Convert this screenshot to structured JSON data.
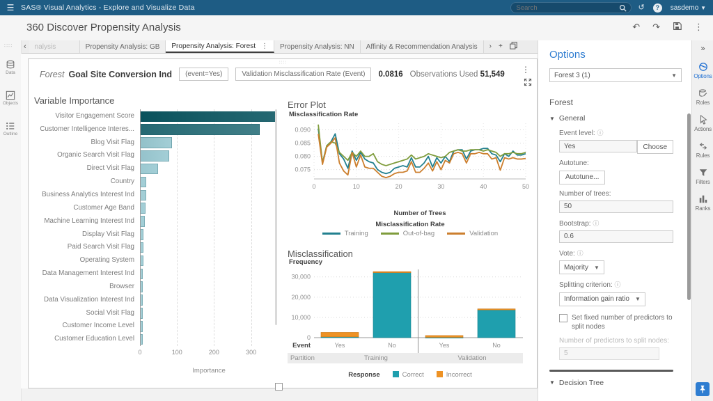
{
  "theme": {
    "appbar_bg": "#1e5c84",
    "accent_blue": "#1f6fd2",
    "teal": "#1f9fae",
    "orange": "#ee9224"
  },
  "app_bar": {
    "title": "SAS® Visual Analytics - Explore and Visualize Data",
    "search_placeholder": "Search",
    "user": "sasdemo"
  },
  "title_bar": {
    "title": "360 Discover Propensity Analysis"
  },
  "tab_strip": {
    "tabs": [
      {
        "label": "nalysis"
      },
      {
        "label": "Propensity Analysis: GB"
      },
      {
        "label": "Propensity Analysis: Forest"
      },
      {
        "label": "Propensity Analysis: NN"
      },
      {
        "label": "Affinity & Recommendation Analysis"
      }
    ]
  },
  "left_rail": {
    "items": [
      {
        "label": "Data"
      },
      {
        "label": "Objects"
      },
      {
        "label": "Outline"
      }
    ]
  },
  "right_rail": {
    "collapse": "»",
    "items": [
      {
        "label": "Options",
        "active": true
      },
      {
        "label": "Roles"
      },
      {
        "label": "Actions"
      },
      {
        "label": "Rules"
      },
      {
        "label": "Filters"
      },
      {
        "label": "Ranks"
      }
    ]
  },
  "report_header": {
    "model_type": "Forest",
    "target": "Goal Site Conversion Ind",
    "event_badge": "(event=Yes)",
    "metric_badge": "Validation Misclassification Rate (Event)",
    "metric_value": "0.0816",
    "observations_label": "Observations Used",
    "observations_value": "51,549"
  },
  "chart_data": [
    {
      "type": "bar",
      "orientation": "horizontal",
      "title": "Variable Importance",
      "xlabel": "Importance",
      "xticks": [
        0,
        100,
        200,
        300
      ],
      "xmax": 372,
      "grid": "dashed-vertical",
      "bar_color_high": "#0a525c",
      "bar_color_low": "#a3ced6",
      "categories": [
        "Visitor Engagement Score",
        "Customer Intelligence Interes...",
        "Blog Visit Flag",
        "Organic Search Visit Flag",
        "Direct Visit Flag",
        "Country",
        "Business Analytics Interest Ind",
        "Customer Age Band",
        "Machine Learning Interest Ind",
        "Display Visit Flag",
        "Paid Search Visit Flag",
        "Operating System",
        "Data Management Interest Ind",
        "Browser",
        "Data Visualization Interest Ind",
        "Social Visit Flag",
        "Customer Income Level",
        "Customer Education Level"
      ],
      "values": [
        365,
        320,
        83,
        75,
        45,
        13,
        13,
        12,
        9,
        6,
        5,
        5,
        4,
        4,
        3,
        3,
        2,
        2
      ]
    },
    {
      "type": "line",
      "title": "Error Plot",
      "ylabel": "Misclassification Rate",
      "xlabel": "Number of Trees",
      "legend_title": "Misclassification Rate",
      "legend_position": "bottom",
      "x_range": [
        0,
        50
      ],
      "xticks": [
        0,
        10,
        20,
        30,
        40,
        50
      ],
      "y_range": [
        0.0715,
        0.0925
      ],
      "yticks": [
        "0.075",
        "0.080",
        "0.085",
        "0.090"
      ],
      "series": [
        {
          "name": "Training",
          "color": "#22808f",
          "values": [
            0.0905,
            0.0775,
            0.084,
            0.0855,
            0.0885,
            0.081,
            0.079,
            0.0755,
            0.082,
            0.0785,
            0.0815,
            0.079,
            0.078,
            0.0775,
            0.075,
            0.074,
            0.0735,
            0.074,
            0.0755,
            0.076,
            0.0765,
            0.076,
            0.0795,
            0.076,
            0.076,
            0.0775,
            0.08,
            0.076,
            0.0795,
            0.0775,
            0.08,
            0.078,
            0.082,
            0.0825,
            0.0825,
            0.079,
            0.082,
            0.0825,
            0.0825,
            0.083,
            0.083,
            0.081,
            0.0805,
            0.078,
            0.081,
            0.08,
            0.082,
            0.0805,
            0.0805,
            0.081
          ]
        },
        {
          "name": "Out-of-bag",
          "color": "#7f9c3c",
          "values": [
            0.092,
            0.0775,
            0.084,
            0.0855,
            0.085,
            0.0815,
            0.08,
            0.0785,
            0.0815,
            0.08,
            0.082,
            0.08,
            0.08,
            0.081,
            0.078,
            0.077,
            0.0765,
            0.077,
            0.0775,
            0.078,
            0.0785,
            0.079,
            0.0805,
            0.079,
            0.0795,
            0.08,
            0.081,
            0.0805,
            0.08,
            0.0795,
            0.08,
            0.0815,
            0.082,
            0.0825,
            0.082,
            0.082,
            0.0825,
            0.0825,
            0.0825,
            0.082,
            0.0825,
            0.082,
            0.0815,
            0.08,
            0.081,
            0.081,
            0.0815,
            0.081,
            0.081,
            0.0815
          ]
        },
        {
          "name": "Validation",
          "color": "#cc7f2e",
          "values": [
            0.0885,
            0.077,
            0.0835,
            0.085,
            0.087,
            0.0775,
            0.0745,
            0.073,
            0.0815,
            0.076,
            0.0805,
            0.076,
            0.0755,
            0.0755,
            0.074,
            0.0725,
            0.072,
            0.0725,
            0.0735,
            0.074,
            0.074,
            0.0745,
            0.078,
            0.074,
            0.074,
            0.0755,
            0.0775,
            0.0745,
            0.078,
            0.075,
            0.0785,
            0.0775,
            0.081,
            0.0815,
            0.081,
            0.0775,
            0.081,
            0.081,
            0.0815,
            0.081,
            0.081,
            0.079,
            0.0795,
            0.0748,
            0.0795,
            0.079,
            0.0795,
            0.079,
            0.079,
            0.0792
          ]
        }
      ]
    },
    {
      "type": "bar",
      "stacked": true,
      "title": "Misclassification",
      "ylabel": "Frequency",
      "yticks": [
        "0",
        "10,000",
        "20,000",
        "30,000"
      ],
      "ymax": 33000,
      "event_row_label": "Event",
      "partition_row_label": "Partition",
      "partitions": [
        "Training",
        "Validation"
      ],
      "groups": [
        {
          "partition": "Training",
          "event": "Yes",
          "correct": 400,
          "incorrect": 2200
        },
        {
          "partition": "Training",
          "event": "No",
          "correct": 32100,
          "incorrect": 500
        },
        {
          "partition": "Validation",
          "event": "Yes",
          "correct": 150,
          "incorrect": 900
        },
        {
          "partition": "Validation",
          "event": "No",
          "correct": 13700,
          "incorrect": 450
        }
      ],
      "legend_title": "Response",
      "legend": [
        {
          "name": "Correct",
          "color": "#1f9fae"
        },
        {
          "name": "Incorrect",
          "color": "#ee9224"
        }
      ]
    }
  ],
  "options_panel": {
    "title": "Options",
    "object_selector": "Forest 3 (1)",
    "section_title": "Forest",
    "general_group": {
      "label": "General",
      "fields": {
        "event_level_label": "Event level:",
        "event_level_value": "Yes",
        "choose_button": "Choose",
        "autotune_label": "Autotune:",
        "autotune_button": "Autotune...",
        "trees_label": "Number of trees:",
        "trees_value": "50",
        "bootstrap_label": "Bootstrap:",
        "bootstrap_value": "0.6",
        "vote_label": "Vote:",
        "vote_value": "Majority",
        "splitting_label": "Splitting criterion:",
        "splitting_value": "Information gain ratio",
        "fixed_predictors_checkbox": "Set fixed number of predictors to split nodes",
        "predictors_label": "Number of predictors to split nodes:",
        "predictors_value": "5"
      }
    },
    "decision_tree_group": {
      "label": "Decision Tree"
    }
  }
}
